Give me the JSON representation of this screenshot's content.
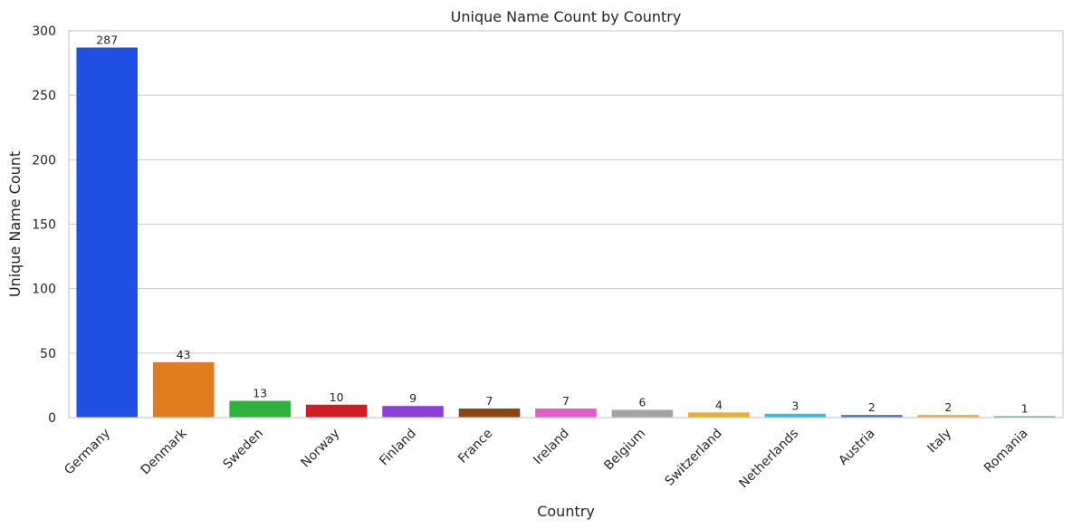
{
  "chart_data": {
    "type": "bar",
    "title": "Unique Name Count by Country",
    "xlabel": "Country",
    "ylabel": "Unique Name Count",
    "categories": [
      "Germany",
      "Denmark",
      "Sweden",
      "Norway",
      "Finland",
      "France",
      "Ireland",
      "Belgium",
      "Switzerland",
      "Netherlands",
      "Austria",
      "Italy",
      "Romania"
    ],
    "values": [
      287,
      43,
      13,
      10,
      9,
      7,
      7,
      6,
      4,
      3,
      2,
      2,
      1
    ],
    "colors": [
      "#1f4fe3",
      "#e17d1f",
      "#2eb13f",
      "#d21c23",
      "#8b3fd6",
      "#8a4510",
      "#e35bcb",
      "#a3a3a3",
      "#e8b324",
      "#2bbfe0",
      "#4f6fb5",
      "#e0ae58",
      "#3aa34a"
    ],
    "yticks": [
      0,
      50,
      100,
      150,
      200,
      250,
      300
    ],
    "ylim": [
      0,
      300
    ],
    "grid": true,
    "legend": "none"
  }
}
